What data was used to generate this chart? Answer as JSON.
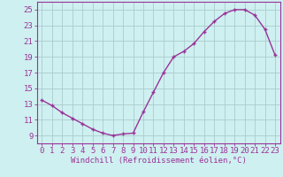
{
  "x": [
    0,
    1,
    2,
    3,
    4,
    5,
    6,
    7,
    8,
    9,
    10,
    11,
    12,
    13,
    14,
    15,
    16,
    17,
    18,
    19,
    20,
    21,
    22,
    23
  ],
  "y": [
    13.5,
    12.8,
    11.9,
    11.2,
    10.5,
    9.8,
    9.3,
    9.0,
    9.2,
    9.3,
    12.0,
    14.5,
    17.0,
    19.0,
    19.7,
    20.7,
    22.2,
    23.5,
    24.5,
    25.0,
    25.0,
    24.3,
    22.5,
    19.2
  ],
  "background_color": "#cff0f0",
  "grid_color": "#aacccc",
  "line_color": "#993399",
  "marker_color": "#993399",
  "yticks": [
    9,
    11,
    13,
    15,
    17,
    19,
    21,
    23,
    25
  ],
  "xlabel": "Windchill (Refroidissement éolien,°C)",
  "ylim": [
    8.0,
    26.0
  ],
  "xlim": [
    -0.5,
    23.5
  ],
  "tick_fontsize": 6.5,
  "xlabel_fontsize": 6.5,
  "linewidth": 1.0,
  "markersize": 3.5
}
